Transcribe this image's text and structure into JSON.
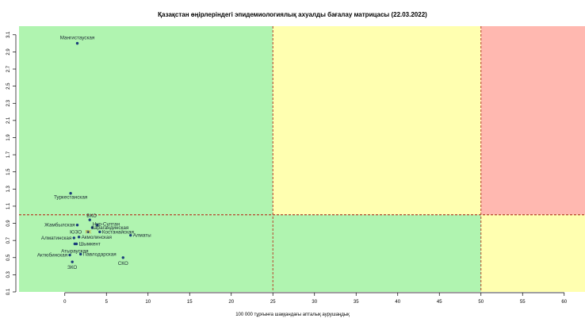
{
  "chart_data": {
    "type": "scatter",
    "title": "Қазақстан өңірлеріндегі эпидемиологиялық ахуалды бағалау матрицасы  (22.03.2022)",
    "xlabel": "100 000 тұрғынға шаққандағы апталық аурушаңдық",
    "ylabel": "",
    "xlim": [
      -5.5,
      62.5
    ],
    "ylim": [
      0.1,
      3.2
    ],
    "x_ticks": [
      0,
      5,
      10,
      15,
      20,
      25,
      30,
      35,
      40,
      45,
      50,
      55,
      60
    ],
    "y_ticks": [
      0.1,
      0.3,
      0.5,
      0.7,
      0.9,
      1.1,
      1.3,
      1.5,
      1.7,
      1.9,
      2.1,
      2.3,
      2.5,
      2.7,
      2.9,
      3.1
    ],
    "grid": false,
    "zones": [
      {
        "x": [
          -5.5,
          25
        ],
        "y": [
          1.0,
          3.2
        ],
        "color": "#b0f4b0"
      },
      {
        "x": [
          25,
          50
        ],
        "y": [
          1.0,
          3.2
        ],
        "color": "#ffffb0"
      },
      {
        "x": [
          50,
          62.5
        ],
        "y": [
          1.0,
          3.2
        ],
        "color": "#ffb8b0"
      },
      {
        "x": [
          -5.5,
          50
        ],
        "y": [
          0.1,
          1.0
        ],
        "color": "#b0f4b0"
      },
      {
        "x": [
          50,
          62.5
        ],
        "y": [
          0.1,
          1.0
        ],
        "color": "#ffffb0"
      }
    ],
    "threshold_lines": {
      "vertical": [
        25,
        50
      ],
      "horizontal": [
        1.0
      ],
      "color": "#b5422a"
    },
    "points": [
      {
        "label": "Мангистауская",
        "x": 1.5,
        "y": 3.0
      },
      {
        "label": "Туркестанская",
        "x": 0.7,
        "y": 1.25
      },
      {
        "label": "Жамбылская",
        "x": 1.5,
        "y": 0.88
      },
      {
        "label": "ВКО",
        "x": 3.0,
        "y": 0.94
      },
      {
        "label": "Нур-Султан",
        "x": 3.9,
        "y": 0.88
      },
      {
        "label": "Карагандинская",
        "x": 3.3,
        "y": 0.85
      },
      {
        "label": "ЮЗО",
        "x": 2.8,
        "y": 0.8
      },
      {
        "label": "РК",
        "x": 3.3,
        "y": 0.8
      },
      {
        "label": "Костанайская",
        "x": 4.2,
        "y": 0.8
      },
      {
        "label": "Алматы",
        "x": 7.9,
        "y": 0.76
      },
      {
        "label": "Алматинская",
        "x": 1.1,
        "y": 0.73
      },
      {
        "label": "Акмолинская",
        "x": 1.7,
        "y": 0.74
      },
      {
        "label": "Шымкент",
        "x": 1.4,
        "y": 0.66
      },
      {
        "label": "Атырауская",
        "x": 1.2,
        "y": 0.66
      },
      {
        "label": "Актюбинская",
        "x": 0.6,
        "y": 0.53
      },
      {
        "label": "Павлодарская",
        "x": 1.9,
        "y": 0.54
      },
      {
        "label": "СКО",
        "x": 7.0,
        "y": 0.5
      },
      {
        "label": "ЗКО",
        "x": 0.9,
        "y": 0.45
      }
    ],
    "point_color": "#1a3d7a",
    "highlight_label_color": "#c9a12a"
  }
}
